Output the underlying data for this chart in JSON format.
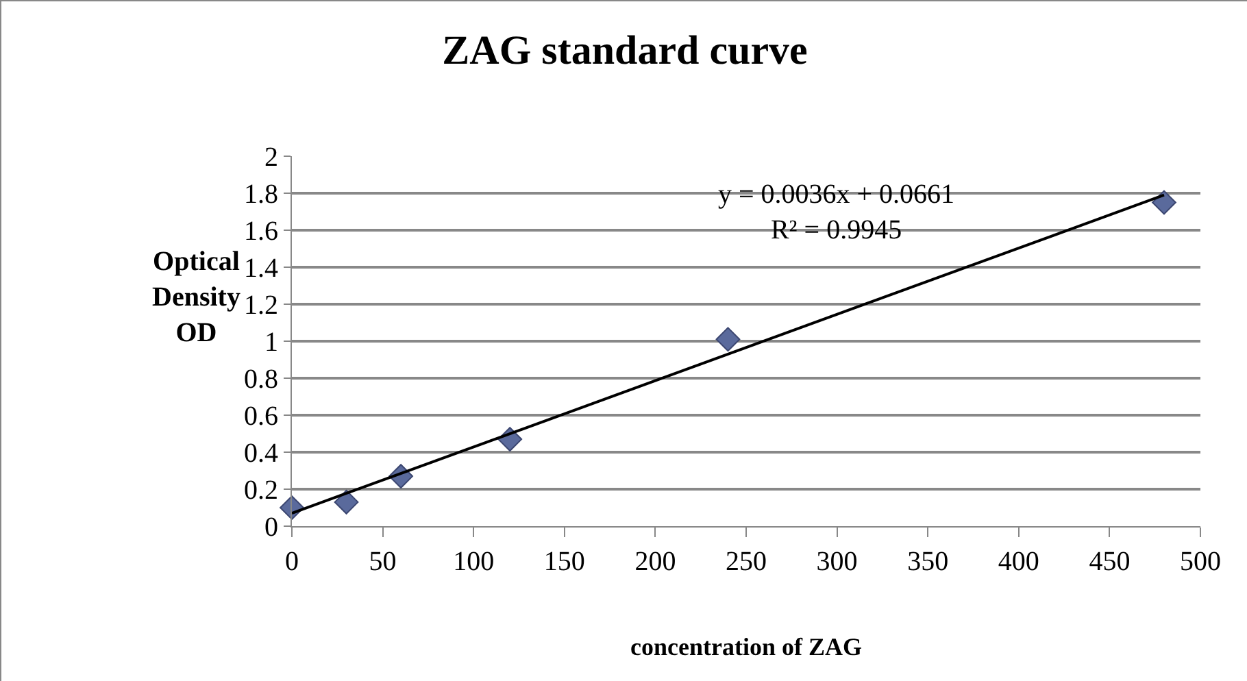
{
  "chart_data": {
    "type": "scatter",
    "title": "ZAG standard curve",
    "xlabel": "concentration of ZAG",
    "ylabel": "Optical\nDensity\nOD",
    "x": [
      0,
      30,
      60,
      120,
      240,
      480
    ],
    "series": [
      {
        "color": "#5a6a9c",
        "values": [
          0.1,
          0.13,
          0.27,
          0.47,
          1.01,
          1.75
        ],
        "marker": "diamond"
      },
      {
        "type": "line",
        "color": "#000000",
        "x": [
          0,
          480
        ],
        "values": [
          0.07,
          1.79
        ],
        "marker": "none",
        "line_style": "solid"
      }
    ],
    "annotations": [
      "y = 0.0036x + 0.0661\nR² = 0.9945"
    ],
    "xlim": [
      0,
      500
    ],
    "xticks": [
      0,
      50,
      100,
      150,
      200,
      250,
      300,
      350,
      400,
      450,
      500
    ],
    "ylim": [
      0,
      2
    ],
    "yticks": [
      0,
      0.2,
      0.4,
      0.6,
      0.8,
      1,
      1.2,
      1.4,
      1.6,
      1.8,
      2
    ],
    "grid": "y"
  }
}
